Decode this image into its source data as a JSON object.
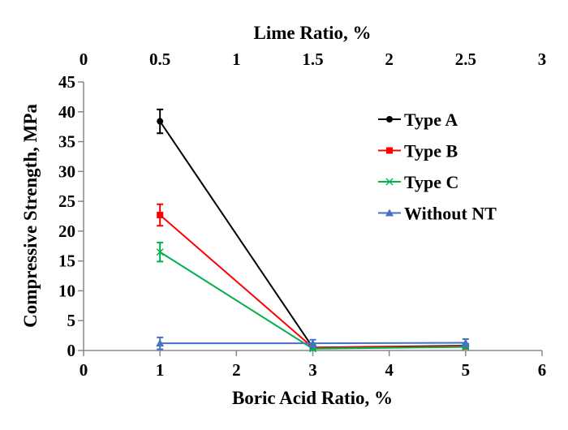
{
  "chart_data": {
    "type": "line",
    "xlabel": "Boric Acid Ratio, %",
    "x2label": "Lime Ratio, %",
    "ylabel": "Compressive Strength, MPa",
    "xlim": [
      0,
      6
    ],
    "x2lim": [
      0,
      3
    ],
    "ylim": [
      0,
      45
    ],
    "xticks": [
      "0",
      "1",
      "2",
      "3",
      "4",
      "5",
      "6"
    ],
    "x2ticks": [
      "0",
      "0.5",
      "1",
      "1.5",
      "2",
      "2.5",
      "3"
    ],
    "yticks": [
      "0",
      "5",
      "10",
      "15",
      "20",
      "25",
      "30",
      "35",
      "40",
      "45"
    ],
    "grid": false,
    "legend_position": "top-right",
    "x": [
      1,
      3,
      5
    ],
    "series": [
      {
        "name": "Type A",
        "color": "#000000",
        "marker": "circle",
        "values": [
          38.4,
          0.5,
          0.8
        ],
        "errors": [
          2.0,
          0.3,
          0.3
        ]
      },
      {
        "name": "Type B",
        "color": "#ff0000",
        "marker": "square",
        "values": [
          22.7,
          0.5,
          0.7
        ],
        "errors": [
          1.8,
          0.3,
          0.3
        ]
      },
      {
        "name": "Type C",
        "color": "#00b050",
        "marker": "x",
        "values": [
          16.5,
          0.3,
          0.6
        ],
        "errors": [
          1.6,
          0.2,
          0.2
        ]
      },
      {
        "name": "Without NT",
        "color": "#4472c4",
        "marker": "triangle",
        "values": [
          1.2,
          1.2,
          1.3
        ],
        "errors": [
          1.0,
          0.6,
          0.6
        ]
      }
    ]
  }
}
